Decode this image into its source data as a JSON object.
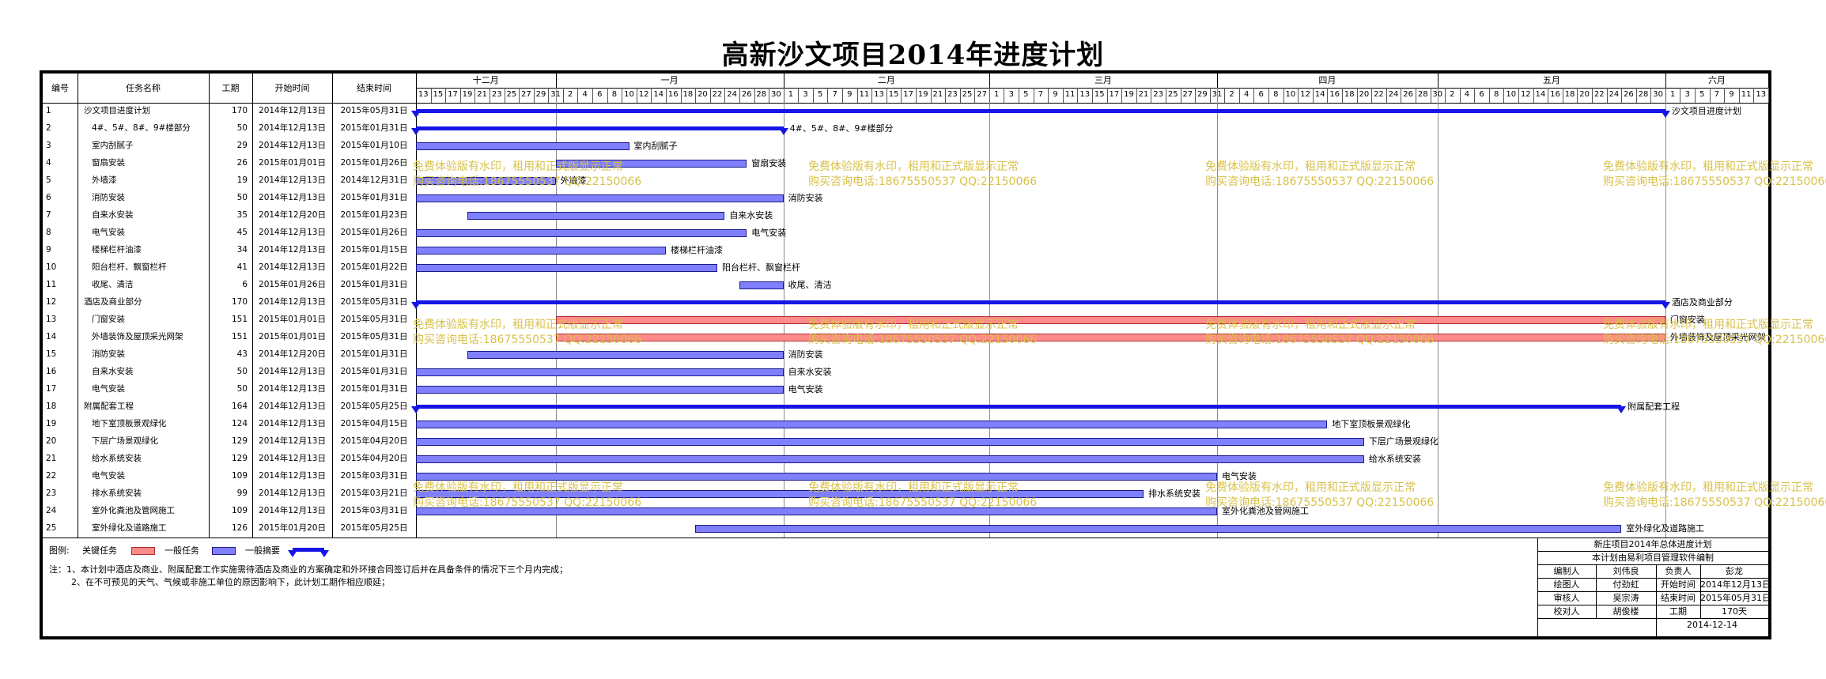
{
  "title": "高新沙文项目2014年进度计划",
  "columns": {
    "no": "编号",
    "name": "任务名称",
    "dur": "工期",
    "start": "开始时间",
    "end": "结束时间"
  },
  "months": [
    "十二月",
    "一月",
    "二月",
    "三月",
    "四月",
    "五月",
    "六月"
  ],
  "timeline_days": [
    "13",
    "15",
    "17",
    "19",
    "21",
    "23",
    "25",
    "27",
    "29",
    "31",
    "2",
    "4",
    "6",
    "8",
    "10",
    "12",
    "14",
    "16",
    "18",
    "20",
    "22",
    "24",
    "26",
    "28",
    "30",
    "1",
    "3",
    "5",
    "7",
    "9",
    "11",
    "13",
    "15",
    "17",
    "19",
    "21",
    "23",
    "25",
    "27",
    "1",
    "3",
    "5",
    "7",
    "9",
    "11",
    "13",
    "15",
    "17",
    "19",
    "21",
    "23",
    "25",
    "27",
    "29",
    "31",
    "2",
    "4",
    "6",
    "8",
    "10",
    "12",
    "14",
    "16",
    "18",
    "20",
    "22",
    "24",
    "26",
    "28",
    "30",
    "2",
    "4",
    "6",
    "8",
    "10",
    "12",
    "14",
    "16",
    "18",
    "20",
    "22",
    "24",
    "26",
    "28",
    "30",
    "1",
    "3",
    "5",
    "7",
    "9",
    "11",
    "13",
    "15"
  ],
  "tasks": [
    {
      "no": "1",
      "name": "沙文项目进度计划",
      "dur": "170",
      "start": "2014年12月13日",
      "end": "2015年05月31日",
      "type": "summary",
      "label": "沙文项目进度计划"
    },
    {
      "no": "2",
      "name": "4#、5#、8#、9#楼部分",
      "dur": "50",
      "start": "2014年12月13日",
      "end": "2015年01月31日",
      "type": "summary",
      "label": "4#、5#、8#、9#楼部分"
    },
    {
      "no": "3",
      "name": "室内刮腻子",
      "dur": "29",
      "start": "2014年12月13日",
      "end": "2015年01月10日",
      "type": "normal",
      "label": "室内刮腻子"
    },
    {
      "no": "4",
      "name": "窗扇安装",
      "dur": "26",
      "start": "2015年01月01日",
      "end": "2015年01月26日",
      "type": "normal",
      "label": "窗扇安装"
    },
    {
      "no": "5",
      "name": "外墙漆",
      "dur": "19",
      "start": "2014年12月13日",
      "end": "2014年12月31日",
      "type": "normal",
      "label": "外墙漆"
    },
    {
      "no": "6",
      "name": "消防安装",
      "dur": "50",
      "start": "2014年12月13日",
      "end": "2015年01月31日",
      "type": "normal",
      "label": "消防安装"
    },
    {
      "no": "7",
      "name": "自来水安装",
      "dur": "35",
      "start": "2014年12月20日",
      "end": "2015年01月23日",
      "type": "normal",
      "label": "自来水安装"
    },
    {
      "no": "8",
      "name": "电气安装",
      "dur": "45",
      "start": "2014年12月13日",
      "end": "2015年01月26日",
      "type": "normal",
      "label": "电气安装"
    },
    {
      "no": "9",
      "name": "楼梯栏杆油漆",
      "dur": "34",
      "start": "2014年12月13日",
      "end": "2015年01月15日",
      "type": "normal",
      "label": "楼梯栏杆油漆"
    },
    {
      "no": "10",
      "name": "阳台栏杆、飘窗栏杆",
      "dur": "41",
      "start": "2014年12月13日",
      "end": "2015年01月22日",
      "type": "normal",
      "label": "阳台栏杆、飘窗栏杆"
    },
    {
      "no": "11",
      "name": "收尾、清洁",
      "dur": "6",
      "start": "2015年01月26日",
      "end": "2015年01月31日",
      "type": "normal",
      "label": "收尾、清洁"
    },
    {
      "no": "12",
      "name": "酒店及商业部分",
      "dur": "170",
      "start": "2014年12月13日",
      "end": "2015年05月31日",
      "type": "summary",
      "label": "酒店及商业部分"
    },
    {
      "no": "13",
      "name": "门窗安装",
      "dur": "151",
      "start": "2015年01月01日",
      "end": "2015年05月31日",
      "type": "critical",
      "label": "门窗安装"
    },
    {
      "no": "14",
      "name": "外墙装饰及屋顶采光网架",
      "dur": "151",
      "start": "2015年01月01日",
      "end": "2015年05月31日",
      "type": "critical",
      "label": "外墙装饰及屋顶采光网架"
    },
    {
      "no": "15",
      "name": "消防安装",
      "dur": "43",
      "start": "2014年12月20日",
      "end": "2015年01月31日",
      "type": "normal",
      "label": "消防安装"
    },
    {
      "no": "16",
      "name": "自来水安装",
      "dur": "50",
      "start": "2014年12月13日",
      "end": "2015年01月31日",
      "type": "normal",
      "label": "自来水安装"
    },
    {
      "no": "17",
      "name": "电气安装",
      "dur": "50",
      "start": "2014年12月13日",
      "end": "2015年01月31日",
      "type": "normal",
      "label": "电气安装"
    },
    {
      "no": "18",
      "name": "附属配套工程",
      "dur": "164",
      "start": "2014年12月13日",
      "end": "2015年05月25日",
      "type": "summary",
      "label": "附属配套工程"
    },
    {
      "no": "19",
      "name": "地下室顶板景观绿化",
      "dur": "124",
      "start": "2014年12月13日",
      "end": "2015年04月15日",
      "type": "normal",
      "label": "地下室顶板景观绿化"
    },
    {
      "no": "20",
      "name": "下层广场景观绿化",
      "dur": "129",
      "start": "2014年12月13日",
      "end": "2015年04月20日",
      "type": "normal",
      "label": "下层广场景观绿化"
    },
    {
      "no": "21",
      "name": "给水系统安装",
      "dur": "129",
      "start": "2014年12月13日",
      "end": "2015年04月20日",
      "type": "normal",
      "label": "给水系统安装"
    },
    {
      "no": "22",
      "name": "电气安装",
      "dur": "109",
      "start": "2014年12月13日",
      "end": "2015年03月31日",
      "type": "normal",
      "label": "电气安装"
    },
    {
      "no": "23",
      "name": "排水系统安装",
      "dur": "99",
      "start": "2014年12月13日",
      "end": "2015年03月21日",
      "type": "normal",
      "label": "排水系统安装"
    },
    {
      "no": "24",
      "name": "室外化粪池及管网施工",
      "dur": "109",
      "start": "2014年12月13日",
      "end": "2015年03月31日",
      "type": "normal",
      "label": "室外化粪池及管网施工"
    },
    {
      "no": "25",
      "name": "室外绿化及道路施工",
      "dur": "126",
      "start": "2015年01月20日",
      "end": "2015年05月25日",
      "type": "normal",
      "label": "室外绿化及道路施工"
    }
  ],
  "legend": {
    "label": "图例:",
    "critical": "关键任务",
    "normal": "一般任务",
    "summary": "一般摘要"
  },
  "notes": [
    "注：1、本计划中酒店及商业、附属配套工作实施需待酒店及商业的方案确定和外环接合同签订后并在具备条件的情况下三个月内完成；",
    "2、在不可预见的天气、气候或非施工单位的原因影响下，此计划工期作相应顺延；"
  ],
  "info_box": {
    "title1": "新庄项目2014年总体进度计划",
    "title2": "本计划由易利项目管理软件编制",
    "rows": [
      [
        "编制人",
        "刘伟良",
        "负责人",
        "彭龙"
      ],
      [
        "绘图人",
        "付劲虹",
        "开始时间",
        "2014年12月13日"
      ],
      [
        "审核人",
        "吴宗涛",
        "结束时间",
        "2015年05月31日"
      ],
      [
        "校对人",
        "胡俊楼",
        "工期",
        "170天"
      ]
    ],
    "date": "2014-12-14"
  },
  "watermark": {
    "line1": "免费体验版有水印，租用和正式版显示正常",
    "line2": "购买咨询电话:18675550537 QQ:22150066"
  },
  "colors": {
    "critical": "#ff8a8a",
    "normal": "#8080ff",
    "summary": "#1515e6",
    "watermark": "#d8c24a"
  }
}
